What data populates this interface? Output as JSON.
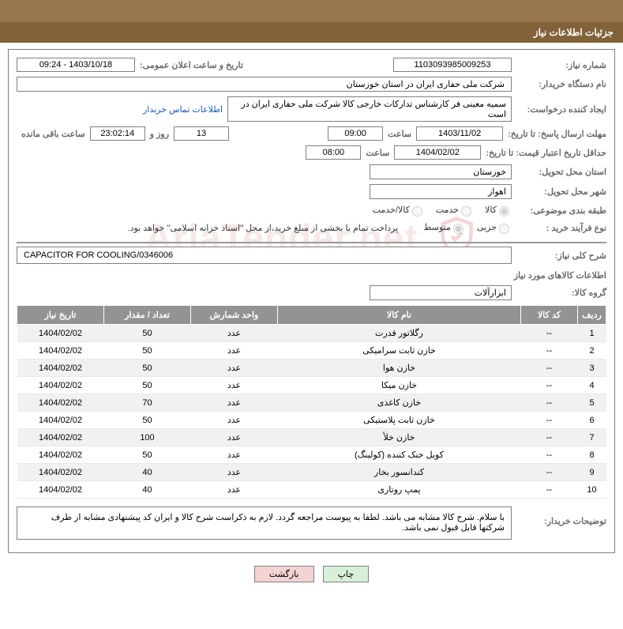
{
  "colors": {
    "topbar": "#97774b",
    "headerbar": "#826239",
    "header_text": "#ffffff",
    "label_color": "#6b6b6b",
    "border": "#808080",
    "link": "#1a5cc2",
    "table_header_bg": "#939393",
    "row_even": "#f1f1f1",
    "row_odd": "#ffffff",
    "btn_print_bg": "#d8efd8",
    "btn_back_bg": "#f3d3d3",
    "watermark": "rgba(180,30,30,0.10)"
  },
  "page_title": "جزئیات اطلاعات نیاز",
  "fields": {
    "need_number_label": "شماره نیاز:",
    "need_number": "1103093985009253",
    "announce_datetime_label": "تاریخ و ساعت اعلان عمومی:",
    "announce_datetime": "1403/10/18 - 09:24",
    "buyer_org_label": "نام دستگاه خریدار:",
    "buyer_org": "شرکت ملی حفاری ایران در استان خوزستان",
    "requester_label": "ایجاد کننده درخواست:",
    "requester": "سمیه معینی فر کارشناس تدارکات خارجی کالا شرکت ملی حفاری ایران در است",
    "buyer_contact_link": "اطلاعات تماس خریدار",
    "deadline_label": "مهلت ارسال پاسخ: تا تاریخ:",
    "deadline_date": "1403/11/02",
    "time_label": "ساعت",
    "deadline_time": "09:00",
    "days_remaining": "13",
    "days_and_label": "روز و",
    "countdown": "23:02:14",
    "hours_remaining_label": "ساعت باقی مانده",
    "validity_label": "حداقل تاریخ اعتبار قیمت: تا تاریخ:",
    "validity_date": "1404/02/02",
    "validity_time": "08:00",
    "province_label": "استان محل تحویل:",
    "province": "خوزستان",
    "city_label": "شهر محل تحویل:",
    "city": "اهواز",
    "category_label": "طبقه بندی موضوعی:",
    "radio_goods": "کالا",
    "radio_service": "خدمت",
    "radio_goods_service": "کالا/خدمت",
    "purchase_type_label": "نوع فرآیند خرید :",
    "radio_minor": "جزیی",
    "radio_medium": "متوسط",
    "payment_note": "پرداخت تمام یا بخشی از مبلغ خرید،از محل \"اسناد خزانه اسلامی\" خواهد بود.",
    "desc_label": "شرح کلی نیاز:",
    "desc_value": "CAPACITOR FOR COOLING/0346006",
    "items_section_title": "اطلاعات کالاهای مورد نیاز",
    "group_label": "گروه کالا:",
    "group_value": "ابزارآلات",
    "buyer_notes_label": "توضیحات خریدار:",
    "buyer_notes": "با سلام. شرح کالا مشابه می باشد. لطفا به پیوست مراجعه گردد. لازم به ذکراست شرح کالا و ایران کد  پیشنهادی مشابه از طرف شرکتها قابل قبول نمی باشد."
  },
  "table": {
    "headers": {
      "idx": "ردیف",
      "code": "کد کالا",
      "name": "نام کالا",
      "unit": "واحد شمارش",
      "qty": "تعداد / مقدار",
      "date": "تاریخ نیاز"
    },
    "rows": [
      {
        "idx": "1",
        "code": "--",
        "name": "رگلاتور قدرت",
        "unit": "عدد",
        "qty": "50",
        "date": "1404/02/02"
      },
      {
        "idx": "2",
        "code": "--",
        "name": "خازن ثابت سرامیکی",
        "unit": "عدد",
        "qty": "50",
        "date": "1404/02/02"
      },
      {
        "idx": "3",
        "code": "--",
        "name": "خازن هوا",
        "unit": "عدد",
        "qty": "50",
        "date": "1404/02/02"
      },
      {
        "idx": "4",
        "code": "--",
        "name": "خازن میکا",
        "unit": "عدد",
        "qty": "50",
        "date": "1404/02/02"
      },
      {
        "idx": "5",
        "code": "--",
        "name": "خازن کاغذی",
        "unit": "عدد",
        "qty": "70",
        "date": "1404/02/02"
      },
      {
        "idx": "6",
        "code": "--",
        "name": "خازن ثابت پلاستیکی",
        "unit": "عدد",
        "qty": "50",
        "date": "1404/02/02"
      },
      {
        "idx": "7",
        "code": "--",
        "name": "خازن خلأ",
        "unit": "عدد",
        "qty": "100",
        "date": "1404/02/02"
      },
      {
        "idx": "8",
        "code": "--",
        "name": "کویل خنک کننده (کولینگ)",
        "unit": "عدد",
        "qty": "50",
        "date": "1404/02/02"
      },
      {
        "idx": "9",
        "code": "--",
        "name": "کندانسور بخار",
        "unit": "عدد",
        "qty": "40",
        "date": "1404/02/02"
      },
      {
        "idx": "10",
        "code": "--",
        "name": "پمپ روتاری",
        "unit": "عدد",
        "qty": "40",
        "date": "1404/02/02"
      }
    ]
  },
  "buttons": {
    "print": "چاپ",
    "back": "بازگشت"
  },
  "watermark_text": "AriaTender.net"
}
